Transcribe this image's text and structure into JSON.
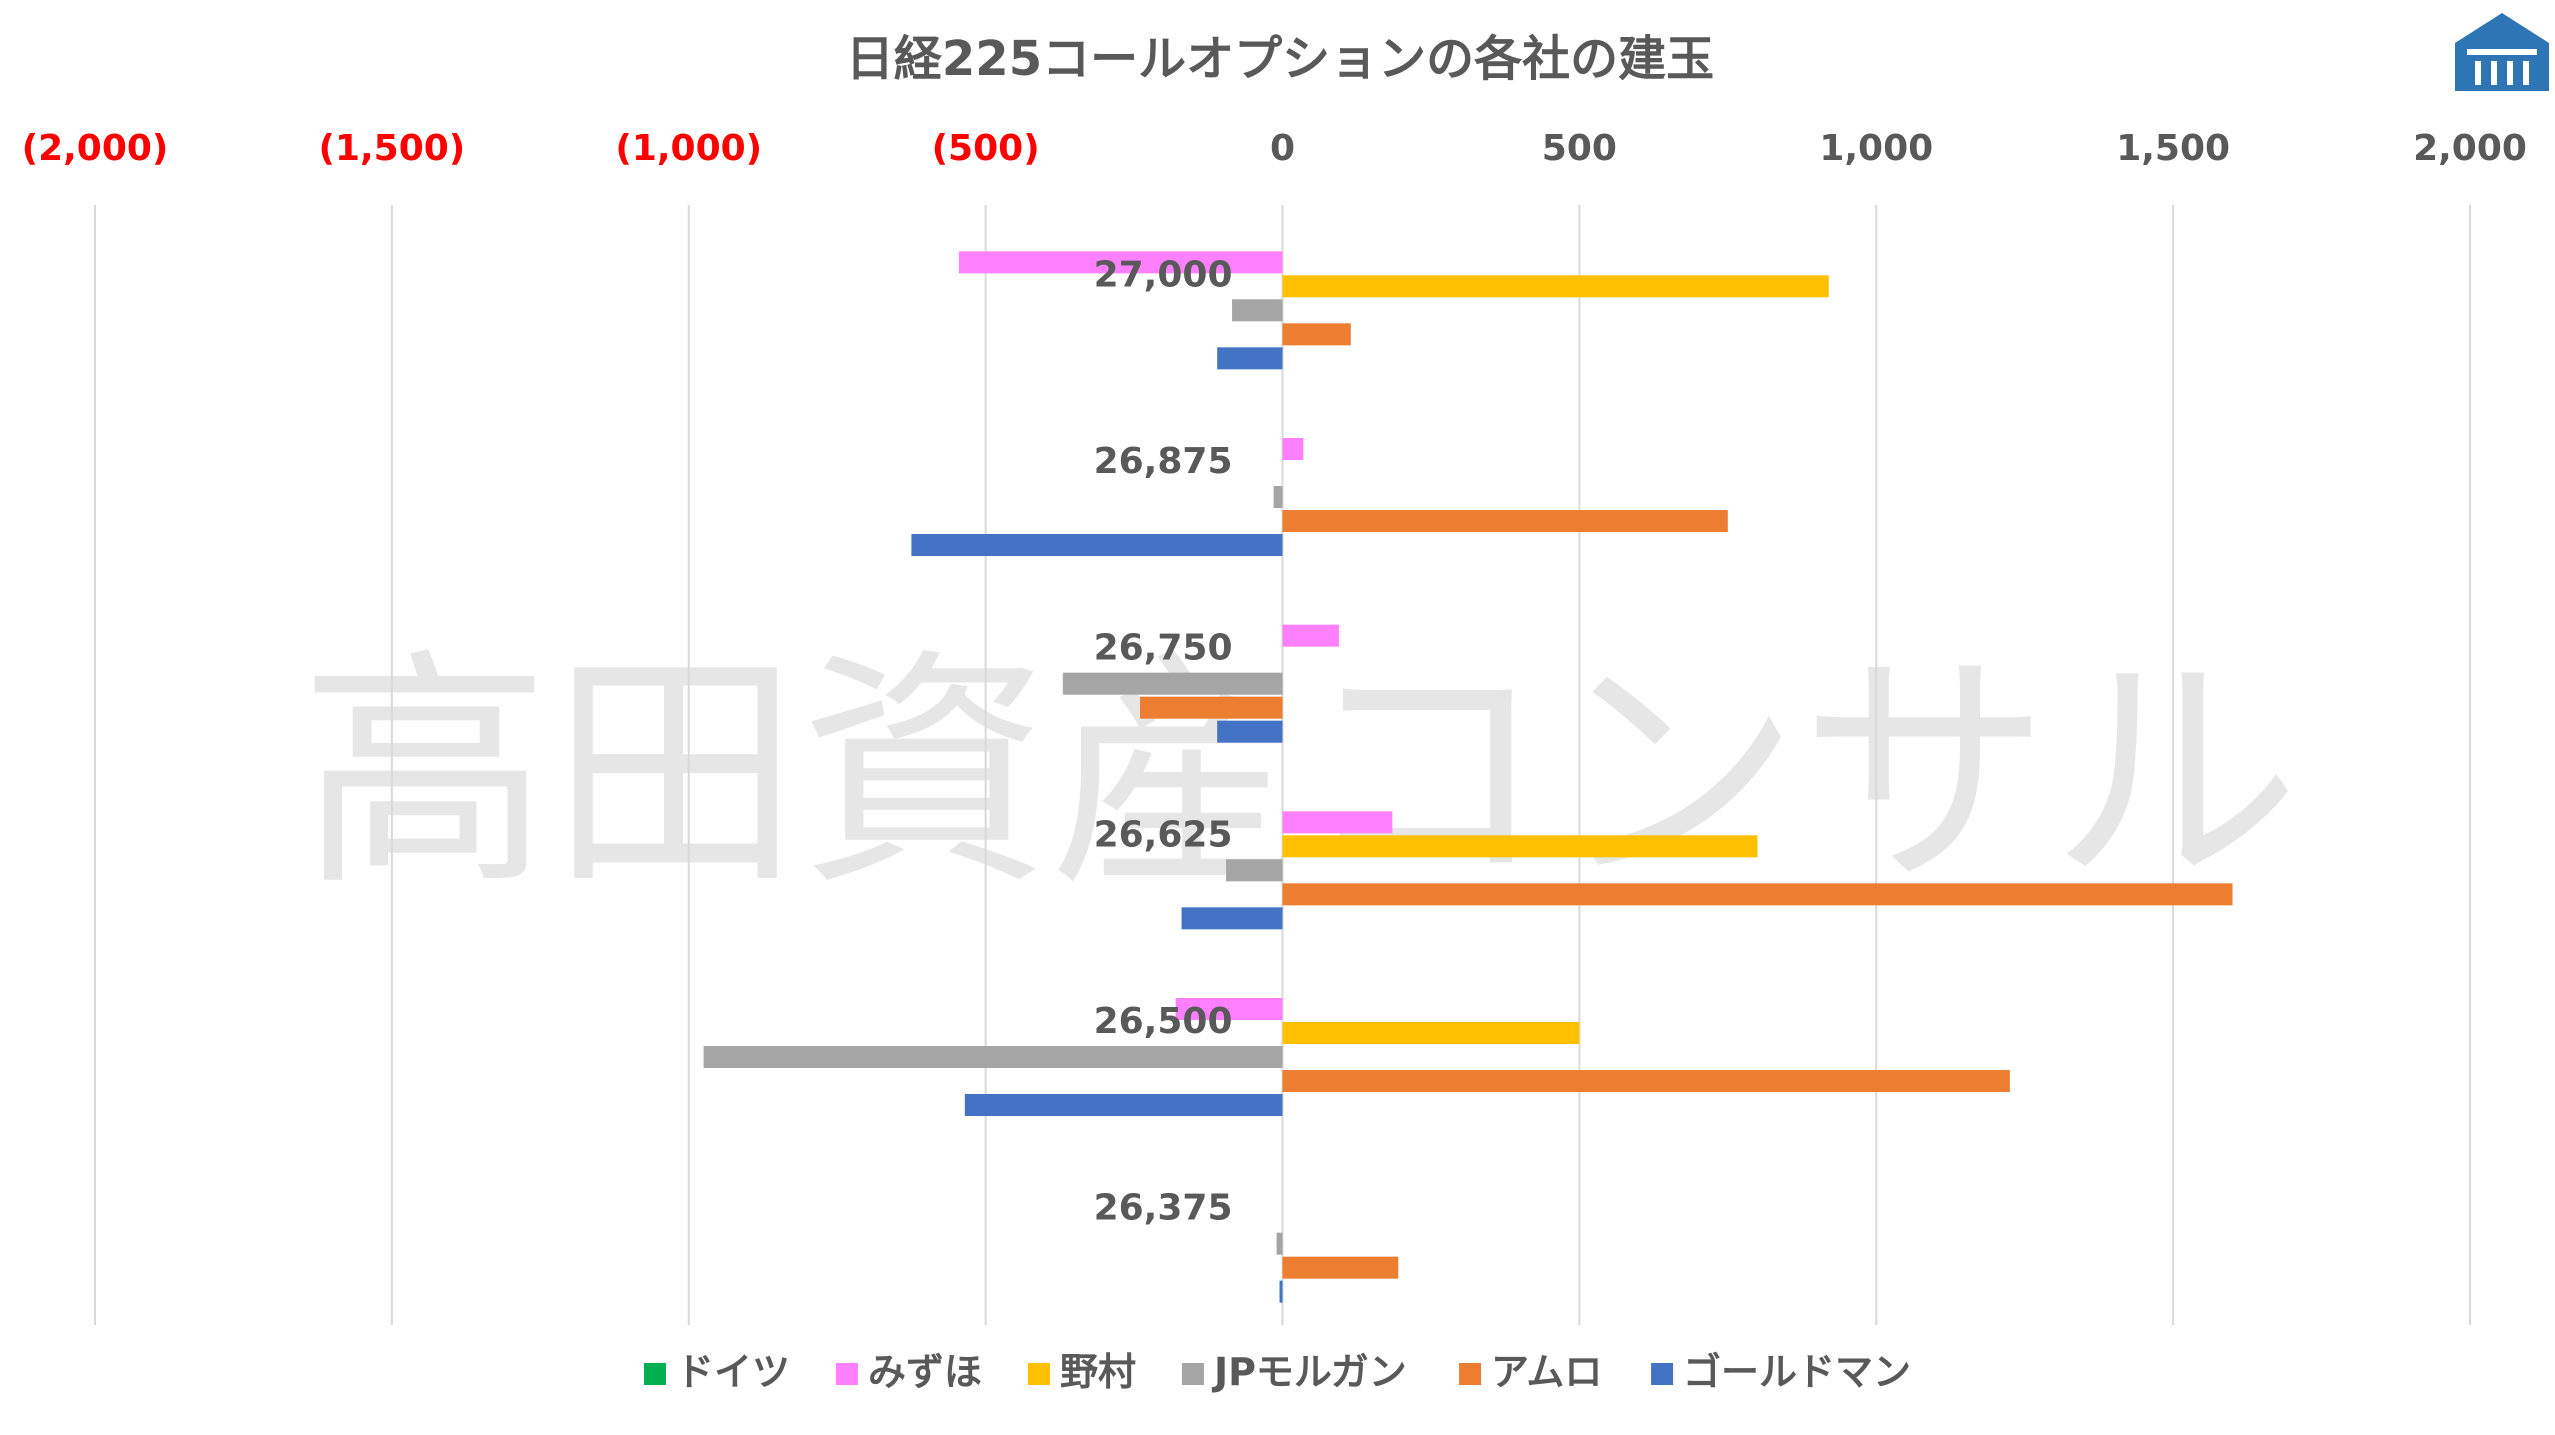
{
  "chart_data": {
    "type": "bar",
    "orientation": "horizontal",
    "title": "日経225コールオプションの各社の建玉",
    "watermark": "高田資産コンサル",
    "xlim": [
      -2000,
      2000
    ],
    "x_ticks": [
      -2000,
      -1500,
      -1000,
      -500,
      0,
      500,
      1000,
      1500,
      2000
    ],
    "x_tick_labels": [
      "(2,000)",
      "(1,500)",
      "(1,000)",
      "(500)",
      "0",
      "500",
      "1,000",
      "1,500",
      "2,000"
    ],
    "negative_tick_color": "#ff0000",
    "positive_tick_color": "#595959",
    "grid": true,
    "legend_position": "bottom",
    "categories": [
      "27,000",
      "26,875",
      "26,750",
      "26,625",
      "26,500",
      "26,375"
    ],
    "series": [
      {
        "name": "ドイツ",
        "color": "#00b050",
        "values": [
          0,
          0,
          0,
          0,
          0,
          0
        ]
      },
      {
        "name": "みずほ",
        "color": "#ff80ff",
        "values": [
          -545,
          35,
          95,
          185,
          -180,
          0
        ]
      },
      {
        "name": "野村",
        "color": "#ffc000",
        "values": [
          920,
          0,
          0,
          800,
          500,
          0
        ]
      },
      {
        "name": "JPモルガン",
        "color": "#a5a5a5",
        "values": [
          -85,
          -15,
          -370,
          -95,
          -975,
          -10
        ]
      },
      {
        "name": "アムロ",
        "color": "#ed7d31",
        "values": [
          115,
          750,
          -240,
          1600,
          1225,
          195
        ]
      },
      {
        "name": "ゴールドマン",
        "color": "#4472c4",
        "values": [
          -110,
          -625,
          -110,
          -170,
          -535,
          -5
        ]
      }
    ]
  },
  "logo": {
    "name": "高田資産コンサル logo",
    "color": "#2e75b6"
  }
}
